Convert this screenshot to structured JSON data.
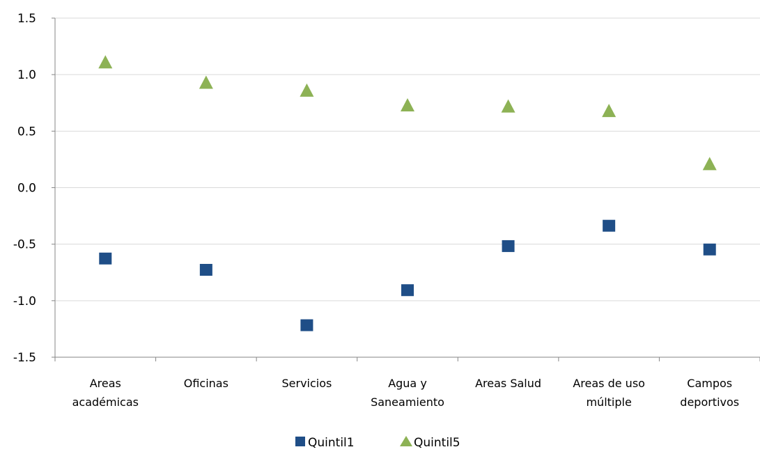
{
  "chart_data": {
    "type": "scatter",
    "categories": [
      [
        "Areas",
        "académicas"
      ],
      [
        "Oficinas"
      ],
      [
        "Servicios"
      ],
      [
        "Agua y",
        "Saneamiento"
      ],
      [
        "Areas Salud"
      ],
      [
        "Areas de uso",
        "múltiple"
      ],
      [
        "Campos",
        "deportivos"
      ]
    ],
    "series": [
      {
        "name": "Quintil1",
        "marker": "square",
        "color": "#1F4E87",
        "values": [
          -0.63,
          -0.73,
          -1.22,
          -0.91,
          -0.52,
          -0.34,
          -0.55
        ]
      },
      {
        "name": "Quintil5",
        "marker": "triangle",
        "color": "#8DB255",
        "values": [
          1.11,
          0.93,
          0.86,
          0.73,
          0.72,
          0.68,
          0.21
        ]
      }
    ],
    "ylim": [
      -1.5,
      1.5
    ],
    "yticks": [
      "1.5",
      "1.0",
      "0.5",
      "0.0",
      "-0.5",
      "-1.0",
      "-1.5"
    ],
    "grid": true,
    "legend_position": "bottom"
  }
}
